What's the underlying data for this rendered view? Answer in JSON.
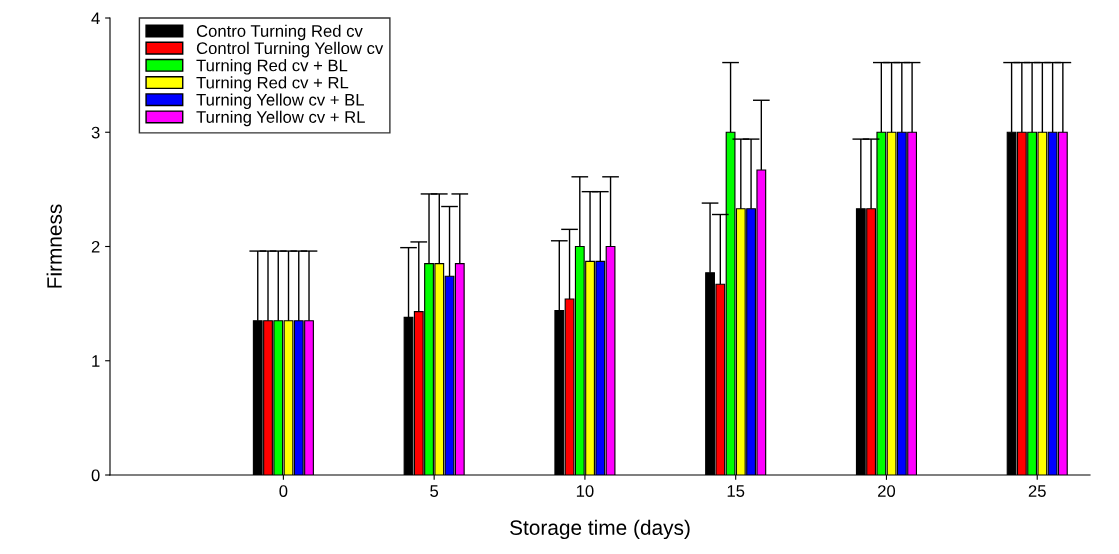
{
  "chart_data": {
    "type": "bar",
    "xlabel": "Storage time (days)",
    "ylabel": "Firmness",
    "categories": [
      "0",
      "5",
      "10",
      "15",
      "20",
      "25"
    ],
    "ylim": [
      0,
      4
    ],
    "yticks": [
      0,
      1,
      2,
      3,
      4
    ],
    "grid": false,
    "legend": "top left",
    "series": [
      {
        "name": "Contro Turning Red cv",
        "color": "#000000",
        "values": [
          1.35,
          1.38,
          1.44,
          1.77,
          2.33,
          3.0
        ],
        "errors": [
          [
            1.35,
            1.96
          ],
          [
            1.38,
            1.99
          ],
          [
            1.44,
            2.05
          ],
          [
            1.77,
            2.38
          ],
          [
            2.33,
            2.94
          ],
          [
            3.0,
            3.61
          ]
        ]
      },
      {
        "name": "Control Turning Yellow cv",
        "color": "#ff0000",
        "values": [
          1.35,
          1.43,
          1.54,
          1.67,
          2.33,
          3.0
        ],
        "errors": [
          [
            1.35,
            1.96
          ],
          [
            1.43,
            2.04
          ],
          [
            1.54,
            2.15
          ],
          [
            1.67,
            2.28
          ],
          [
            2.33,
            2.94
          ],
          [
            3.0,
            3.61
          ]
        ]
      },
      {
        "name": "Turning Red cv + BL",
        "color": "#00ff00",
        "values": [
          1.35,
          1.85,
          2.0,
          3.0,
          3.0,
          3.0
        ],
        "errors": [
          [
            1.35,
            1.96
          ],
          [
            1.85,
            2.46
          ],
          [
            2.0,
            2.61
          ],
          [
            3.0,
            3.61
          ],
          [
            3.0,
            3.61
          ],
          [
            3.0,
            3.61
          ]
        ]
      },
      {
        "name": "Turning Red cv + RL",
        "color": "#ffff00",
        "values": [
          1.35,
          1.85,
          1.87,
          2.33,
          3.0,
          3.0
        ],
        "errors": [
          [
            1.35,
            1.96
          ],
          [
            1.85,
            2.46
          ],
          [
            1.87,
            2.48
          ],
          [
            2.33,
            2.94
          ],
          [
            3.0,
            3.61
          ],
          [
            3.0,
            3.61
          ]
        ]
      },
      {
        "name": "Turning Yellow cv + BL",
        "color": "#0000ff",
        "values": [
          1.35,
          1.74,
          1.87,
          2.33,
          3.0,
          3.0
        ],
        "errors": [
          [
            1.35,
            1.96
          ],
          [
            1.74,
            2.35
          ],
          [
            1.87,
            2.48
          ],
          [
            2.33,
            2.94
          ],
          [
            3.0,
            3.61
          ],
          [
            3.0,
            3.61
          ]
        ]
      },
      {
        "name": "Turning Yellow cv + RL",
        "color": "#ff00ff",
        "values": [
          1.35,
          1.85,
          2.0,
          2.67,
          3.0,
          3.0
        ],
        "errors": [
          [
            1.35,
            1.96
          ],
          [
            1.85,
            2.46
          ],
          [
            2.0,
            2.61
          ],
          [
            2.67,
            3.28
          ],
          [
            3.0,
            3.61
          ],
          [
            3.0,
            3.61
          ]
        ]
      }
    ]
  }
}
